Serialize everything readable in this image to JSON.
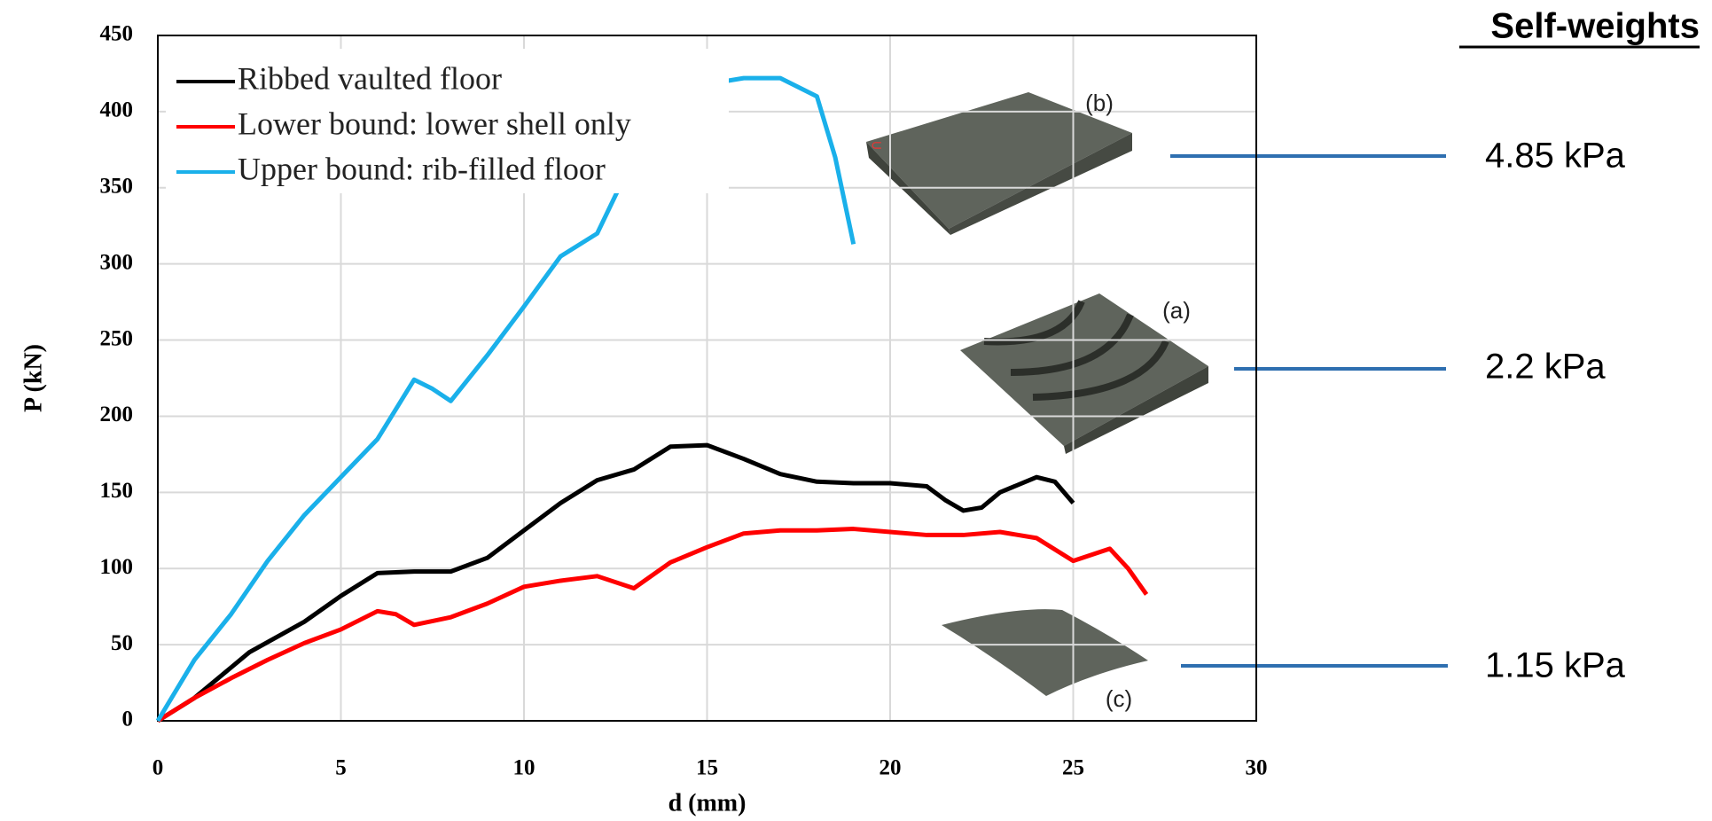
{
  "chart_data": {
    "type": "line",
    "xlabel": "d (mm)",
    "ylabel": "P (kN)",
    "xlim": [
      0,
      30
    ],
    "xticks": [
      0,
      5,
      10,
      15,
      20,
      25,
      30
    ],
    "ylim": [
      0,
      450
    ],
    "yticks": [
      0,
      50,
      100,
      150,
      200,
      250,
      300,
      350,
      400,
      450
    ],
    "grid": true,
    "legend": "upper-left",
    "series": [
      {
        "name": "Ribbed vaulted floor",
        "color": "#000000",
        "x": [
          0,
          1,
          2,
          2.5,
          4,
          5,
          6,
          7,
          8,
          9,
          10,
          11,
          12,
          13,
          14,
          15,
          16,
          17,
          18,
          19,
          20,
          21,
          21.5,
          22,
          22.5,
          23,
          24,
          24.5,
          25
        ],
        "values": [
          0,
          15,
          35,
          45,
          65,
          82,
          97,
          98,
          98,
          107,
          125,
          143,
          158,
          165,
          180,
          181,
          172,
          162,
          157,
          156,
          156,
          154,
          145,
          138,
          140,
          150,
          160,
          157,
          143
        ]
      },
      {
        "name": "Lower bound: lower shell only",
        "color": "#ff0000",
        "x": [
          0,
          1,
          2,
          3,
          4,
          5,
          6,
          6.5,
          7,
          8,
          9,
          10,
          11,
          12,
          13,
          14,
          15,
          16,
          17,
          18,
          19,
          20,
          21,
          22,
          23,
          24,
          25,
          26,
          26.5,
          27
        ],
        "values": [
          0,
          15,
          28,
          40,
          51,
          60,
          72,
          70,
          63,
          68,
          77,
          88,
          92,
          95,
          87,
          104,
          114,
          123,
          125,
          125,
          126,
          124,
          122,
          122,
          124,
          120,
          105,
          113,
          100,
          83
        ]
      },
      {
        "name": "Upper bound: rib-filled floor",
        "color": "#1ab0ea",
        "x": [
          0,
          1,
          2,
          3,
          4,
          5,
          6,
          7,
          7.5,
          8,
          9,
          10,
          11,
          12,
          13,
          14,
          15,
          16,
          17,
          18,
          18.5,
          19
        ],
        "values": [
          0,
          40,
          70,
          105,
          135,
          160,
          185,
          224,
          218,
          210,
          240,
          272,
          305,
          320,
          370,
          400,
          418,
          422,
          422,
          410,
          370,
          313
        ]
      }
    ],
    "annotations": {
      "title": "Self-weights",
      "items": [
        {
          "label": "(b)",
          "weight": "4.85 kPa"
        },
        {
          "label": "(a)",
          "weight": "2.2 kPa"
        },
        {
          "label": "(c)",
          "weight": "1.15 kPa"
        }
      ]
    }
  }
}
